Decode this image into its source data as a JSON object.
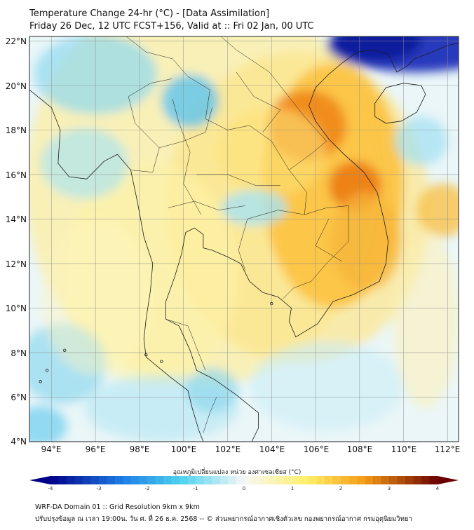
{
  "header": {
    "title_line1": "Temperature Change 24-hr (°C) - [Data Assimilation]",
    "title_line2": "Friday 26 Dec, 12 UTC FCST+156, Valid at :: Fri 02 Jan, 00 UTC"
  },
  "map": {
    "lon_labels": [
      "94°E",
      "96°E",
      "98°E",
      "100°E",
      "102°E",
      "104°E",
      "106°E",
      "108°E",
      "110°E",
      "112°E"
    ],
    "lat_labels": [
      "22°N",
      "20°N",
      "18°N",
      "16°N",
      "14°N",
      "12°N",
      "10°N",
      "8°N",
      "6°N",
      "4°N"
    ],
    "lon_range": [
      93,
      112.5
    ],
    "lat_range": [
      4,
      22.2
    ],
    "colors": {
      "ocean_base": "#eaf6f8",
      "land_base": "#fbf3c6",
      "grid": "#8c8c8c",
      "coast": "#1a1a1a"
    }
  },
  "colorbar": {
    "label": "อุณหภูมิเปลี่ยนแปลง หน่วย องศาเซลเซียส (°C)",
    "ticks": [
      "-4",
      "-3",
      "-2",
      "-1",
      "0",
      "1",
      "2",
      "3",
      "4"
    ],
    "range": [
      -4,
      4
    ],
    "colors": {
      "cold_extreme": "#000088",
      "cold": "#1f7fe6",
      "cool": "#4fd2ef",
      "neutral": "#f7f7f7",
      "warm": "#fff06a",
      "hot": "#f59a15",
      "hot_extreme": "#6a0000"
    }
  },
  "footer": {
    "line1": "WRF-DA Domain 01 :: Grid Resolution 9km x 9km",
    "line2": "ปรับปรุงข้อมูล ณ เวลา 19:00น. วัน ศ. ที่ 26 ธ.ค. 2568 -- © ส่วนพยากรณ์อากาศเชิงตัวเลข กองพยากรณ์อากาศ กรมอุตุนิยมวิทยา"
  }
}
